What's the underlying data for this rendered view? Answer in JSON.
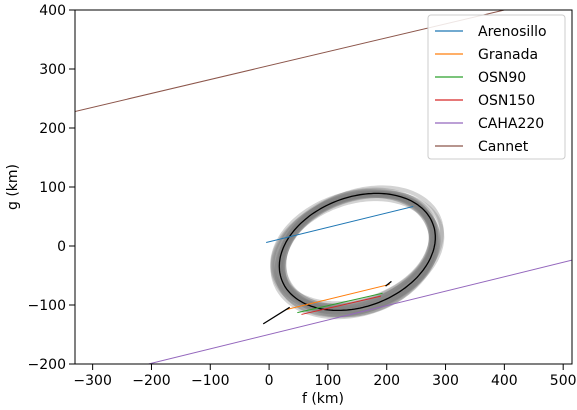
{
  "chart_data": {
    "type": "line",
    "xlabel": "f (km)",
    "ylabel": "g (km)",
    "xlim": [
      -330,
      515
    ],
    "ylim": [
      -200,
      400
    ],
    "xticks": [
      -300,
      -200,
      -100,
      0,
      100,
      200,
      300,
      400,
      500
    ],
    "xtick_labels": [
      "−300",
      "−200",
      "−100",
      "0",
      "100",
      "200",
      "300",
      "400",
      "500"
    ],
    "yticks": [
      -200,
      -100,
      0,
      100,
      200,
      300,
      400
    ],
    "ytick_labels": [
      "−200",
      "−100",
      "0",
      "100",
      "200",
      "300",
      "400"
    ],
    "grid": false,
    "legend_position": "top-right",
    "series": [
      {
        "name": "Arenosillo",
        "color": "#1f77b4",
        "x": [
          -5,
          245
        ],
        "y": [
          6,
          67
        ]
      },
      {
        "name": "Granada",
        "color": "#ff7f0e",
        "x": [
          28,
          205
        ],
        "y": [
          -108,
          -65
        ]
      },
      {
        "name": "OSN90",
        "color": "#2ca02c",
        "x": [
          48,
          193
        ],
        "y": [
          -113,
          -80
        ]
      },
      {
        "name": "OSN150",
        "color": "#d62728",
        "x": [
          55,
          190
        ],
        "y": [
          -116,
          -85
        ]
      },
      {
        "name": "CAHA220",
        "color": "#9467bd",
        "x": [
          -205,
          515
        ],
        "y": [
          -200,
          -24
        ]
      },
      {
        "name": "Cannet",
        "color": "#8c564b",
        "x": [
          -330,
          400
        ],
        "y": [
          228,
          400
        ]
      }
    ],
    "ellipse_fit": {
      "center": [
        150,
        -10
      ],
      "semi_major": 137,
      "semi_minor": 93,
      "angle_deg": 20,
      "color": "#000000"
    },
    "uncertainty_band": {
      "color": "#808080",
      "count": 24,
      "spread_km": 7
    },
    "chords": [
      {
        "x": [
          -10,
          35
        ],
        "y": [
          -132,
          -104
        ],
        "color": "#000000"
      },
      {
        "x": [
          198,
          208
        ],
        "y": [
          -68,
          -60
        ],
        "color": "#000000"
      }
    ]
  }
}
